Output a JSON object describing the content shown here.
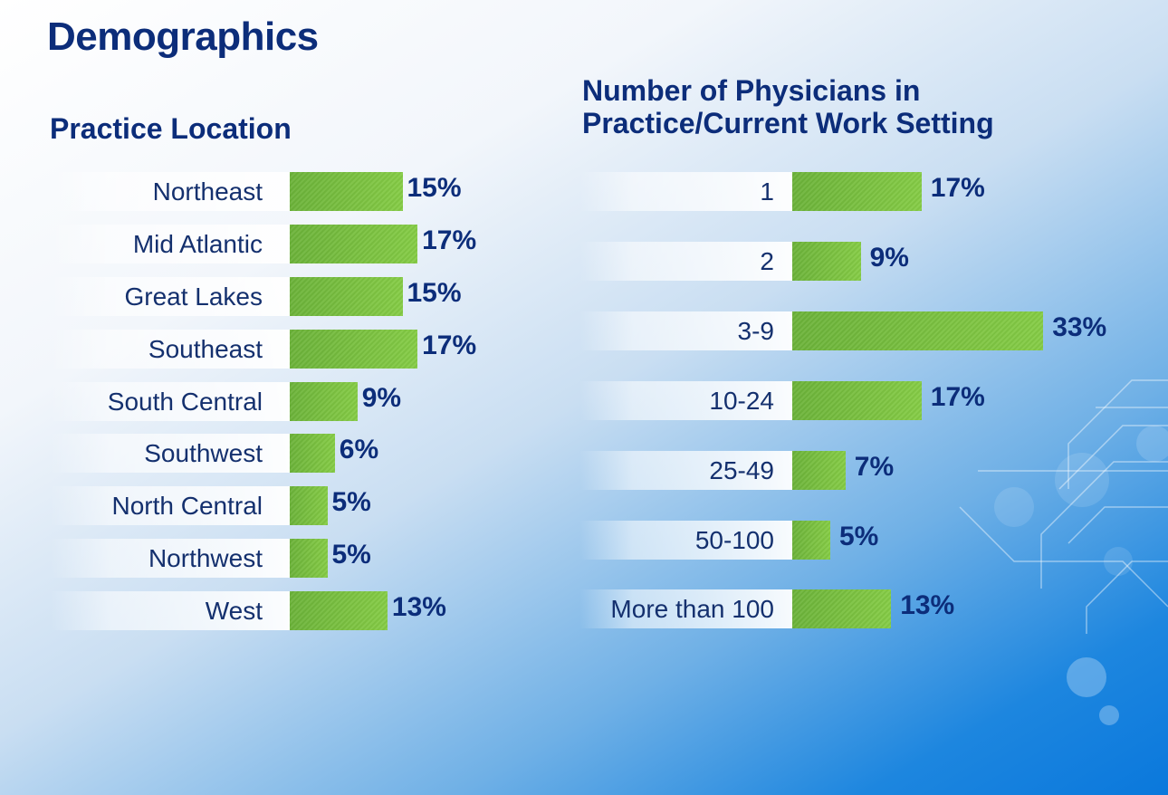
{
  "page": {
    "title": "Demographics"
  },
  "colors": {
    "bar": "#7cc242",
    "title": "#0c2d7a",
    "label": "#14306e"
  },
  "chart_data": [
    {
      "type": "bar",
      "orientation": "horizontal",
      "title": "Practice Location",
      "categories": [
        "Northeast",
        "Mid Atlantic",
        "Great Lakes",
        "Southeast",
        "South Central",
        "Southwest",
        "North Central",
        "Northwest",
        "West"
      ],
      "values": [
        15,
        17,
        15,
        17,
        9,
        6,
        5,
        5,
        13
      ],
      "value_labels": [
        "15%",
        "17%",
        "15%",
        "17%",
        "9%",
        "6%",
        "5%",
        "5%",
        "13%"
      ],
      "unit": "%",
      "xlim": [
        0,
        40
      ],
      "grid": false,
      "legend": "none"
    },
    {
      "type": "bar",
      "orientation": "horizontal",
      "title": "Number of Physicians in Practice/Current Work Setting",
      "categories": [
        "1",
        "2",
        "3-9",
        "10-24",
        "25-49",
        "50-100",
        "More than 100"
      ],
      "values": [
        17,
        9,
        33,
        17,
        7,
        5,
        13
      ],
      "value_labels": [
        "17%",
        "9%",
        "33%",
        "17%",
        "7%",
        "5%",
        "13%"
      ],
      "unit": "%",
      "xlim": [
        0,
        40
      ],
      "grid": false,
      "legend": "none"
    }
  ]
}
